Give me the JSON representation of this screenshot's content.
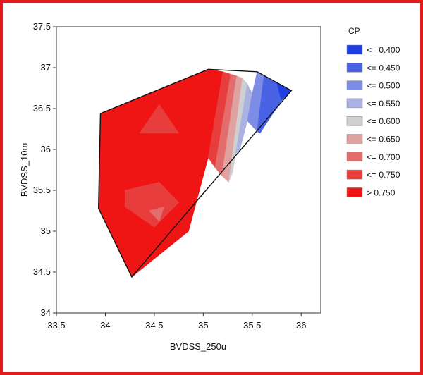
{
  "frame": {
    "border_color": "#e21b1b"
  },
  "chart_data": {
    "type": "contour",
    "title": "",
    "xlabel": "BVDSS_250u",
    "ylabel": "BVDSS_10m",
    "xlim": [
      33.5,
      36.2
    ],
    "ylim": [
      34,
      37.5
    ],
    "x_ticks": [
      33.5,
      34,
      34.5,
      35,
      35.5,
      36
    ],
    "x_tick_labels": [
      "33.5",
      "34",
      "34.5",
      "35",
      "35.5",
      "36"
    ],
    "y_ticks": [
      34,
      34.5,
      35,
      35.5,
      36,
      36.5,
      37,
      37.5
    ],
    "y_tick_labels": [
      "34",
      "34.5",
      "35",
      "35.5",
      "36",
      "36.5",
      "37",
      "37.5"
    ],
    "grid": false,
    "legend": {
      "title": "CP",
      "placement": "right",
      "entries": [
        {
          "label": "<= 0.400",
          "color": "#1f3ee0"
        },
        {
          "label": "<= 0.450",
          "color": "#4a63e4"
        },
        {
          "label": "<= 0.500",
          "color": "#7d8de6"
        },
        {
          "label": "<= 0.550",
          "color": "#a9b2e2"
        },
        {
          "label": "<= 0.600",
          "color": "#cfcfcf"
        },
        {
          "label": "<= 0.650",
          "color": "#e0a1a1"
        },
        {
          "label": "<= 0.700",
          "color": "#e36c6c"
        },
        {
          "label": "<= 0.750",
          "color": "#e83d3d"
        },
        {
          "label": "> 0.750",
          "color": "#f01515"
        }
      ]
    },
    "hull": [
      [
        33.95,
        36.44
      ],
      [
        35.05,
        36.98
      ],
      [
        35.55,
        36.95
      ],
      [
        35.9,
        36.72
      ],
      [
        34.27,
        34.44
      ],
      [
        33.93,
        35.28
      ]
    ],
    "regions": [
      {
        "level": "> 0.750",
        "polygon": [
          [
            33.95,
            36.44
          ],
          [
            35.05,
            36.98
          ],
          [
            35.2,
            36.95
          ],
          [
            35.05,
            35.9
          ],
          [
            34.85,
            35.0
          ],
          [
            34.27,
            34.44
          ],
          [
            33.93,
            35.28
          ]
        ]
      },
      {
        "level": "<= 0.750",
        "polygon": [
          [
            35.2,
            36.95
          ],
          [
            35.28,
            36.92
          ],
          [
            35.12,
            35.78
          ],
          [
            35.05,
            35.9
          ]
        ]
      },
      {
        "level": "<= 0.700",
        "polygon": [
          [
            35.28,
            36.92
          ],
          [
            35.34,
            36.9
          ],
          [
            35.19,
            35.68
          ],
          [
            35.12,
            35.78
          ]
        ]
      },
      {
        "level": "<= 0.650",
        "polygon": [
          [
            35.34,
            36.9
          ],
          [
            35.4,
            36.87
          ],
          [
            35.26,
            35.6
          ],
          [
            35.19,
            35.68
          ]
        ]
      },
      {
        "level": "<= 0.600",
        "polygon": [
          [
            35.4,
            36.87
          ],
          [
            35.45,
            36.8
          ],
          [
            35.33,
            35.95
          ],
          [
            35.3,
            35.72
          ],
          [
            35.26,
            35.6
          ]
        ]
      },
      {
        "level": "<= 0.550",
        "polygon": [
          [
            35.45,
            36.8
          ],
          [
            35.5,
            36.68
          ],
          [
            35.45,
            36.35
          ],
          [
            35.37,
            35.98
          ],
          [
            35.33,
            35.95
          ]
        ]
      },
      {
        "level": "<= 0.500",
        "polygon": [
          [
            35.5,
            36.68
          ],
          [
            35.55,
            36.95
          ],
          [
            35.62,
            36.9
          ],
          [
            35.55,
            36.22
          ],
          [
            35.45,
            36.35
          ]
        ]
      },
      {
        "level": "<= 0.450",
        "polygon": [
          [
            35.62,
            36.9
          ],
          [
            35.75,
            36.82
          ],
          [
            35.8,
            36.6
          ],
          [
            35.58,
            36.2
          ],
          [
            35.55,
            36.22
          ]
        ]
      },
      {
        "level": "<= 0.400",
        "polygon": [
          [
            35.75,
            36.82
          ],
          [
            35.9,
            36.72
          ],
          [
            35.8,
            36.6
          ]
        ]
      },
      {
        "level": "<= 0.750",
        "polygon": [
          [
            34.2,
            35.5
          ],
          [
            34.55,
            35.6
          ],
          [
            34.75,
            35.35
          ],
          [
            34.5,
            35.05
          ],
          [
            34.2,
            35.3
          ]
        ]
      },
      {
        "level": "<= 0.700",
        "polygon": [
          [
            34.45,
            35.25
          ],
          [
            34.6,
            35.3
          ],
          [
            34.55,
            35.12
          ]
        ]
      },
      {
        "level": "<= 0.750",
        "polygon": [
          [
            34.35,
            36.2
          ],
          [
            34.55,
            36.55
          ],
          [
            34.75,
            36.2
          ]
        ]
      }
    ]
  }
}
